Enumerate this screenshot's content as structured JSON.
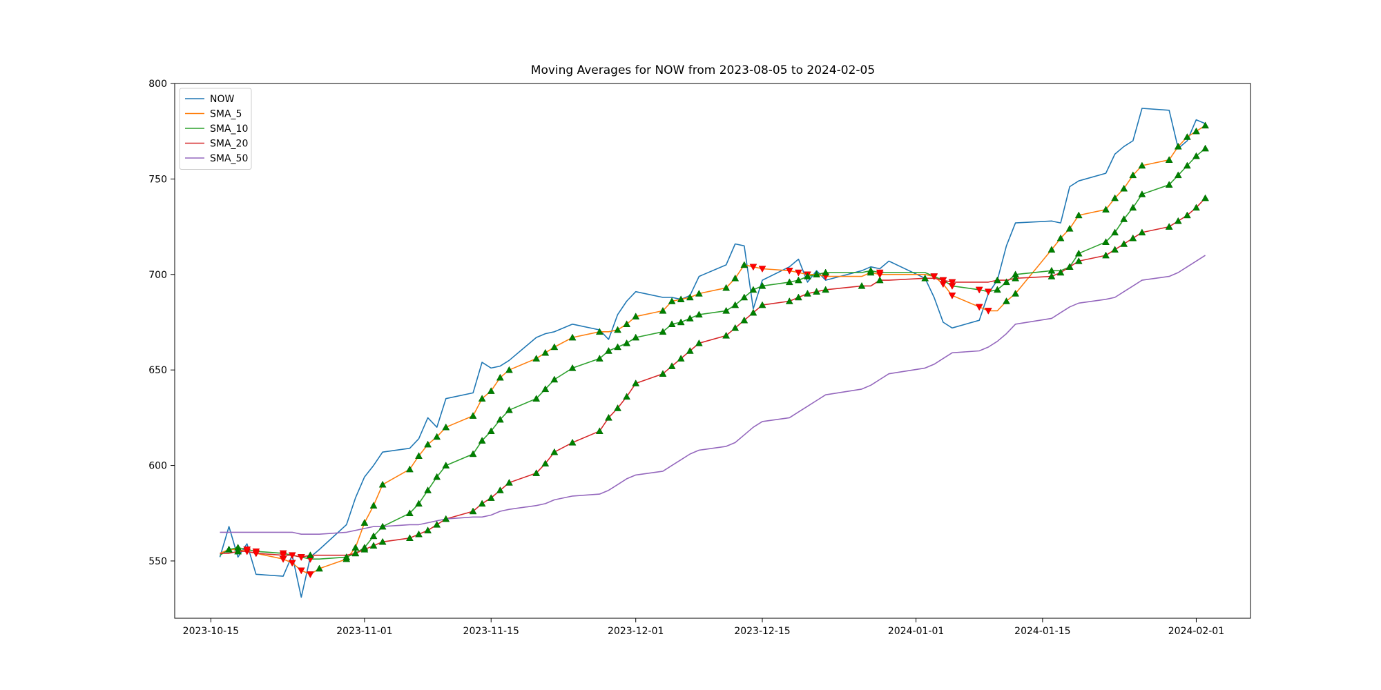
{
  "chart_data": {
    "type": "line",
    "title": "Moving Averages for NOW from 2023-08-05 to 2024-02-05",
    "xlabel": "",
    "ylabel": "",
    "xlim": [
      "2023-10-11",
      "2024-02-07"
    ],
    "ylim": [
      520,
      800
    ],
    "x_ticks": [
      "2023-10-15",
      "2023-11-01",
      "2023-11-15",
      "2023-12-01",
      "2023-12-15",
      "2024-01-01",
      "2024-01-15",
      "2024-02-01"
    ],
    "y_ticks": [
      550,
      600,
      650,
      700,
      750,
      800
    ],
    "legend_position": "top-left",
    "grid": false,
    "dates": [
      "2023-10-16",
      "2023-10-17",
      "2023-10-18",
      "2023-10-19",
      "2023-10-20",
      "2023-10-23",
      "2023-10-24",
      "2023-10-25",
      "2023-10-26",
      "2023-10-27",
      "2023-10-30",
      "2023-10-31",
      "2023-11-01",
      "2023-11-02",
      "2023-11-03",
      "2023-11-06",
      "2023-11-07",
      "2023-11-08",
      "2023-11-09",
      "2023-11-10",
      "2023-11-13",
      "2023-11-14",
      "2023-11-15",
      "2023-11-16",
      "2023-11-17",
      "2023-11-20",
      "2023-11-21",
      "2023-11-22",
      "2023-11-24",
      "2023-11-27",
      "2023-11-28",
      "2023-11-29",
      "2023-11-30",
      "2023-12-01",
      "2023-12-04",
      "2023-12-05",
      "2023-12-06",
      "2023-12-07",
      "2023-12-08",
      "2023-12-11",
      "2023-12-12",
      "2023-12-13",
      "2023-12-14",
      "2023-12-15",
      "2023-12-18",
      "2023-12-19",
      "2023-12-20",
      "2023-12-21",
      "2023-12-22",
      "2023-12-26",
      "2023-12-27",
      "2023-12-28",
      "2023-12-29",
      "2024-01-02",
      "2024-01-03",
      "2024-01-04",
      "2024-01-05",
      "2024-01-08",
      "2024-01-09",
      "2024-01-10",
      "2024-01-11",
      "2024-01-12",
      "2024-01-16",
      "2024-01-17",
      "2024-01-18",
      "2024-01-19",
      "2024-01-22",
      "2024-01-23",
      "2024-01-24",
      "2024-01-25",
      "2024-01-26",
      "2024-01-29",
      "2024-01-30",
      "2024-01-31",
      "2024-02-01",
      "2024-02-02"
    ],
    "series": [
      {
        "name": "NOW",
        "color": "#1f77b4",
        "values": [
          552,
          568,
          552,
          559,
          543,
          542,
          553,
          531,
          552,
          556,
          569,
          583,
          594,
          600,
          607,
          609,
          614,
          625,
          620,
          635,
          638,
          654,
          651,
          652,
          655,
          667,
          669,
          670,
          674,
          671,
          666,
          679,
          686,
          691,
          688,
          688,
          687,
          689,
          699,
          705,
          716,
          715,
          682,
          697,
          704,
          708,
          696,
          702,
          697,
          702,
          704,
          703,
          707,
          698,
          688,
          675,
          672,
          676,
          690,
          697,
          715,
          727,
          728,
          727,
          746,
          749,
          753,
          763,
          767,
          770,
          787,
          786,
          766,
          770,
          781,
          779
        ]
      },
      {
        "name": "SMA_5",
        "color": "#ff7f0e",
        "values": [
          554,
          556,
          556,
          555,
          554,
          551,
          549,
          545,
          543,
          546,
          551,
          557,
          570,
          579,
          590,
          598,
          605,
          611,
          615,
          620,
          626,
          635,
          639,
          646,
          650,
          656,
          659,
          662,
          667,
          670,
          670,
          671,
          674,
          678,
          681,
          686,
          687,
          688,
          690,
          693,
          698,
          705,
          704,
          703,
          702,
          701,
          700,
          700,
          699,
          699,
          701,
          700,
          700,
          700,
          699,
          695,
          689,
          683,
          681,
          681,
          686,
          690,
          713,
          719,
          724,
          731,
          734,
          740,
          745,
          752,
          757,
          760,
          767,
          772,
          775,
          778
        ]
      },
      {
        "name": "SMA_10",
        "color": "#2ca02c",
        "values": [
          553,
          556,
          557,
          556,
          555,
          554,
          553,
          552,
          551,
          551,
          552,
          554,
          557,
          563,
          568,
          575,
          580,
          587,
          594,
          600,
          606,
          613,
          618,
          624,
          629,
          635,
          640,
          645,
          651,
          656,
          660,
          662,
          664,
          667,
          670,
          674,
          675,
          677,
          679,
          681,
          684,
          688,
          692,
          694,
          696,
          697,
          699,
          700,
          701,
          701,
          702,
          701,
          701,
          701,
          699,
          697,
          694,
          692,
          691,
          692,
          696,
          700,
          702,
          702,
          704,
          711,
          717,
          722,
          729,
          735,
          742,
          747,
          752,
          757,
          762,
          766
        ]
      },
      {
        "name": "SMA_20",
        "color": "#d62728",
        "values": [
          554,
          554,
          555,
          555,
          554,
          553,
          553,
          552,
          553,
          553,
          553,
          554,
          556,
          558,
          560,
          562,
          564,
          566,
          569,
          572,
          576,
          580,
          583,
          587,
          591,
          596,
          601,
          607,
          612,
          618,
          625,
          630,
          636,
          643,
          648,
          652,
          656,
          660,
          664,
          668,
          672,
          676,
          680,
          684,
          686,
          688,
          690,
          691,
          692,
          694,
          694,
          697,
          697,
          698,
          698,
          697,
          696,
          696,
          696,
          697,
          697,
          698,
          699,
          701,
          704,
          707,
          710,
          713,
          716,
          719,
          722,
          725,
          728,
          731,
          735,
          740
        ]
      },
      {
        "name": "SMA_50",
        "color": "#9467bd",
        "values": [
          565,
          565,
          565,
          565,
          565,
          565,
          565,
          564,
          564,
          564,
          565,
          566,
          567,
          568,
          568,
          569,
          569,
          570,
          571,
          572,
          573,
          573,
          574,
          576,
          577,
          579,
          580,
          582,
          584,
          585,
          587,
          590,
          593,
          595,
          597,
          600,
          603,
          606,
          608,
          610,
          612,
          616,
          620,
          623,
          625,
          628,
          631,
          634,
          637,
          640,
          642,
          645,
          648,
          651,
          653,
          656,
          659,
          660,
          662,
          665,
          669,
          674,
          677,
          680,
          683,
          685,
          687,
          688,
          691,
          694,
          697,
          699,
          701,
          704,
          707,
          710
        ]
      }
    ]
  }
}
